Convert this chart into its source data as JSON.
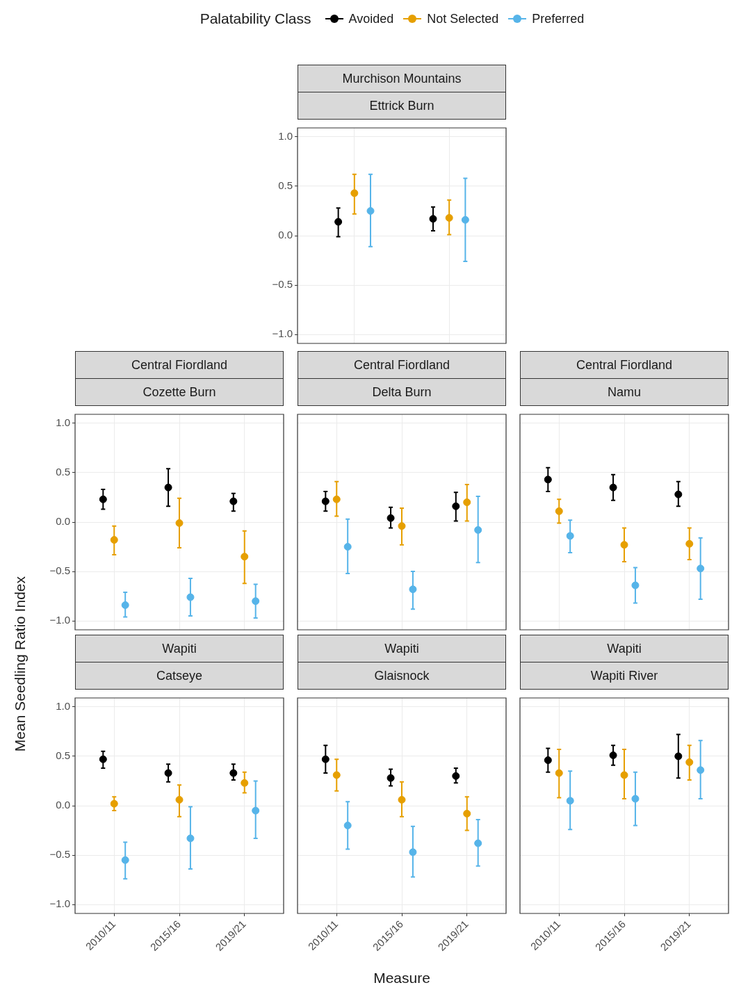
{
  "chart_data": [
    {
      "type": "scatter",
      "title": "Murchison Mountains",
      "subtitle": "Ettrick Burn",
      "legend": "top",
      "legend_title": "Palatability Class",
      "categories": [
        null,
        null
      ],
      "ylim": [
        -1.09,
        1.09
      ],
      "yticks": [
        {
          "value": -1,
          "label": "−1.0"
        },
        {
          "value": -0.5,
          "label": "−0.5"
        },
        {
          "value": 0,
          "label": "0.0"
        },
        {
          "value": 0.5,
          "label": "0.5"
        },
        {
          "value": 1,
          "label": "1.0"
        }
      ],
      "grid": true,
      "marker": "circle",
      "tick_labels": "y",
      "series": [
        {
          "name": "Avoided",
          "color": "#000000",
          "values": [
            0.14,
            0.17
          ],
          "errors": [
            [
              -0.01,
              0.28
            ],
            [
              0.05,
              0.29
            ]
          ]
        },
        {
          "name": "Not Selected",
          "color": "#e69f00",
          "values": [
            0.43,
            0.18
          ],
          "errors": [
            [
              0.22,
              0.62
            ],
            [
              0.01,
              0.36
            ]
          ]
        },
        {
          "name": "Preferred",
          "color": "#56b4e9",
          "values": [
            0.25,
            0.16
          ],
          "errors": [
            [
              -0.11,
              0.62
            ],
            [
              -0.26,
              0.58
            ]
          ]
        }
      ]
    },
    {
      "type": "scatter",
      "title": "Central Fiordland",
      "subtitle": "Cozette Burn",
      "ylabel": "Mean Seedling Ratio Index",
      "categories": [
        "2010/11",
        "2015/16",
        "2019/21"
      ],
      "ylim": [
        -1.09,
        1.09
      ],
      "yticks": [
        {
          "value": -1,
          "label": "−1.0"
        },
        {
          "value": -0.5,
          "label": "−0.5"
        },
        {
          "value": 0,
          "label": "0.0"
        },
        {
          "value": 0.5,
          "label": "0.5"
        },
        {
          "value": 1,
          "label": "1.0"
        }
      ],
      "grid": true,
      "marker": "circle",
      "tick_labels": "y",
      "series": [
        {
          "color": "#000000",
          "values": [
            0.23,
            0.35,
            0.21
          ],
          "errors": [
            [
              0.13,
              0.33
            ],
            [
              0.16,
              0.54
            ],
            [
              0.11,
              0.29
            ]
          ]
        },
        {
          "color": "#e69f00",
          "values": [
            -0.18,
            -0.01,
            -0.35
          ],
          "errors": [
            [
              -0.33,
              -0.04
            ],
            [
              -0.26,
              0.24
            ],
            [
              -0.62,
              -0.09
            ]
          ]
        },
        {
          "color": "#56b4e9",
          "values": [
            -0.84,
            -0.76,
            -0.8
          ],
          "errors": [
            [
              -0.96,
              -0.71
            ],
            [
              -0.95,
              -0.57
            ],
            [
              -0.97,
              -0.63
            ]
          ]
        }
      ]
    },
    {
      "type": "scatter",
      "title": "Central Fiordland",
      "subtitle": "Delta Burn",
      "categories": [
        "2010/11",
        "2015/16",
        "2019/21"
      ],
      "ylim": [
        -1.09,
        1.09
      ],
      "yticks": [
        {
          "value": -1,
          "label": null
        },
        {
          "value": -0.5,
          "label": null
        },
        {
          "value": 0,
          "label": null
        },
        {
          "value": 0.5,
          "label": null
        },
        {
          "value": 1,
          "label": null
        }
      ],
      "grid": true,
      "marker": "circle",
      "tick_labels": false,
      "series": [
        {
          "color": "#000000",
          "values": [
            0.21,
            0.04,
            0.16
          ],
          "errors": [
            [
              0.11,
              0.31
            ],
            [
              -0.06,
              0.15
            ],
            [
              0.01,
              0.3
            ]
          ]
        },
        {
          "color": "#e69f00",
          "values": [
            0.23,
            -0.04,
            0.2
          ],
          "errors": [
            [
              0.06,
              0.41
            ],
            [
              -0.23,
              0.14
            ],
            [
              0.01,
              0.38
            ]
          ]
        },
        {
          "color": "#56b4e9",
          "values": [
            -0.25,
            -0.68,
            -0.08
          ],
          "errors": [
            [
              -0.52,
              0.03
            ],
            [
              -0.88,
              -0.5
            ],
            [
              -0.41,
              0.26
            ]
          ]
        }
      ]
    },
    {
      "type": "scatter",
      "title": "Central Fiordland",
      "subtitle": "Namu",
      "categories": [
        "2010/11",
        "2015/16",
        "2019/21"
      ],
      "ylim": [
        -1.09,
        1.09
      ],
      "yticks": [
        {
          "value": -1,
          "label": null
        },
        {
          "value": -0.5,
          "label": null
        },
        {
          "value": 0,
          "label": null
        },
        {
          "value": 0.5,
          "label": null
        },
        {
          "value": 1,
          "label": null
        }
      ],
      "grid": true,
      "marker": "circle",
      "tick_labels": false,
      "series": [
        {
          "color": "#000000",
          "values": [
            0.43,
            0.35,
            0.28
          ],
          "errors": [
            [
              0.31,
              0.55
            ],
            [
              0.22,
              0.48
            ],
            [
              0.16,
              0.41
            ]
          ]
        },
        {
          "color": "#e69f00",
          "values": [
            0.11,
            -0.23,
            -0.22
          ],
          "errors": [
            [
              -0.01,
              0.23
            ],
            [
              -0.4,
              -0.06
            ],
            [
              -0.38,
              -0.06
            ]
          ]
        },
        {
          "color": "#56b4e9",
          "values": [
            -0.14,
            -0.64,
            -0.47
          ],
          "errors": [
            [
              -0.31,
              0.02
            ],
            [
              -0.82,
              -0.46
            ],
            [
              -0.78,
              -0.16
            ]
          ]
        }
      ]
    },
    {
      "type": "scatter",
      "title": "Wapiti",
      "subtitle": "Catseye",
      "categories": [
        "2010/11",
        "2015/16",
        "2019/21"
      ],
      "ylim": [
        -1.09,
        1.09
      ],
      "yticks": [
        {
          "value": -1,
          "label": "−1.0"
        },
        {
          "value": -0.5,
          "label": "−0.5"
        },
        {
          "value": 0,
          "label": "0.0"
        },
        {
          "value": 0.5,
          "label": "0.5"
        },
        {
          "value": 1,
          "label": "1.0"
        }
      ],
      "grid": true,
      "marker": "circle",
      "series": [
        {
          "color": "#000000",
          "values": [
            0.47,
            0.33,
            0.33
          ],
          "errors": [
            [
              0.38,
              0.55
            ],
            [
              0.24,
              0.42
            ],
            [
              0.26,
              0.42
            ]
          ]
        },
        {
          "color": "#e69f00",
          "values": [
            0.02,
            0.06,
            0.23
          ],
          "errors": [
            [
              -0.05,
              0.09
            ],
            [
              -0.11,
              0.21
            ],
            [
              0.13,
              0.34
            ]
          ]
        },
        {
          "color": "#56b4e9",
          "values": [
            -0.55,
            -0.33,
            -0.05
          ],
          "errors": [
            [
              -0.74,
              -0.37
            ],
            [
              -0.64,
              -0.01
            ],
            [
              -0.33,
              0.25
            ]
          ]
        }
      ]
    },
    {
      "type": "scatter",
      "title": "Wapiti",
      "subtitle": "Glaisnock",
      "xlabel": "Measure",
      "categories": [
        "2010/11",
        "2015/16",
        "2019/21"
      ],
      "ylim": [
        -1.09,
        1.09
      ],
      "yticks": [
        {
          "value": -1,
          "label": null
        },
        {
          "value": -0.5,
          "label": null
        },
        {
          "value": 0,
          "label": null
        },
        {
          "value": 0.5,
          "label": null
        },
        {
          "value": 1,
          "label": null
        }
      ],
      "grid": true,
      "marker": "circle",
      "tick_labels": "x",
      "series": [
        {
          "color": "#000000",
          "values": [
            0.47,
            0.28,
            0.3
          ],
          "errors": [
            [
              0.33,
              0.61
            ],
            [
              0.2,
              0.37
            ],
            [
              0.23,
              0.38
            ]
          ]
        },
        {
          "color": "#e69f00",
          "values": [
            0.31,
            0.06,
            -0.08
          ],
          "errors": [
            [
              0.15,
              0.47
            ],
            [
              -0.11,
              0.24
            ],
            [
              -0.25,
              0.09
            ]
          ]
        },
        {
          "color": "#56b4e9",
          "values": [
            -0.2,
            -0.47,
            -0.38
          ],
          "errors": [
            [
              -0.44,
              0.04
            ],
            [
              -0.72,
              -0.21
            ],
            [
              -0.61,
              -0.14
            ]
          ]
        }
      ]
    },
    {
      "type": "scatter",
      "title": "Wapiti",
      "subtitle": "Wapiti River",
      "categories": [
        "2010/11",
        "2015/16",
        "2019/21"
      ],
      "ylim": [
        -1.09,
        1.09
      ],
      "yticks": [
        {
          "value": -1,
          "label": null
        },
        {
          "value": -0.5,
          "label": null
        },
        {
          "value": 0,
          "label": null
        },
        {
          "value": 0.5,
          "label": null
        },
        {
          "value": 1,
          "label": null
        }
      ],
      "grid": true,
      "marker": "circle",
      "tick_labels": "x",
      "series": [
        {
          "color": "#000000",
          "values": [
            0.46,
            0.51,
            0.5
          ],
          "errors": [
            [
              0.34,
              0.58
            ],
            [
              0.41,
              0.61
            ],
            [
              0.28,
              0.72
            ]
          ]
        },
        {
          "color": "#e69f00",
          "values": [
            0.33,
            0.31,
            0.44
          ],
          "errors": [
            [
              0.08,
              0.57
            ],
            [
              0.07,
              0.57
            ],
            [
              0.26,
              0.61
            ]
          ]
        },
        {
          "color": "#56b4e9",
          "values": [
            0.05,
            0.07,
            0.36
          ],
          "errors": [
            [
              -0.24,
              0.35
            ],
            [
              -0.2,
              0.34
            ],
            [
              0.07,
              0.66
            ]
          ]
        }
      ]
    }
  ]
}
